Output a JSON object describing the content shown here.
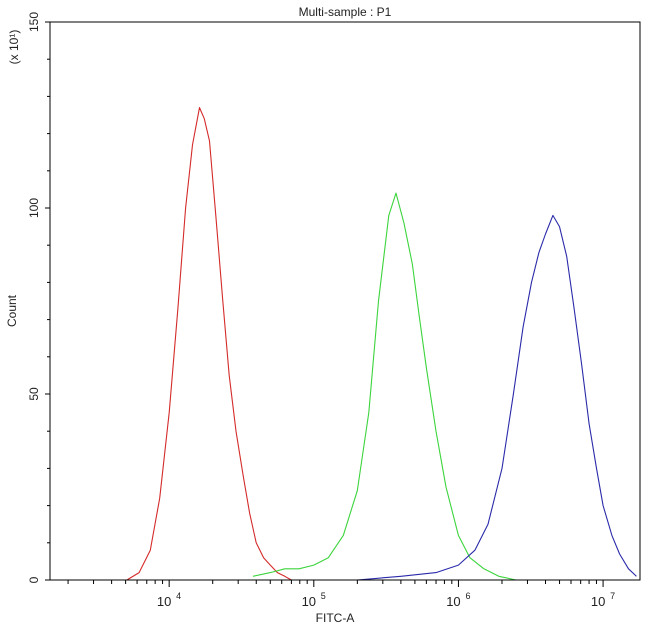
{
  "chart_data": {
    "type": "line",
    "title": "Multi-sample : P1",
    "xlabel": "FITC-A",
    "ylabel": "Count",
    "y_multiplier_label": "(x 10¹)",
    "xscale": "log",
    "xlim": [
      1500,
      18000000
    ],
    "ylim": [
      0,
      150
    ],
    "x_ticks": [
      {
        "value": 10000,
        "base": "10",
        "exp": "4"
      },
      {
        "value": 100000,
        "base": "10",
        "exp": "5"
      },
      {
        "value": 1000000,
        "base": "10",
        "exp": "6"
      },
      {
        "value": 10000000,
        "base": "10",
        "exp": "7"
      }
    ],
    "y_ticks": [
      0,
      50,
      100,
      150
    ],
    "grid": false,
    "series": [
      {
        "color": "#d42a2a",
        "x": [
          5100,
          6200,
          7400,
          8600,
          10000,
          11500,
          13000,
          14500,
          16200,
          17500,
          19000,
          21000,
          23500,
          26000,
          29000,
          32500,
          36000,
          40000,
          45000,
          50000,
          56000,
          63000,
          70000
        ],
        "y": [
          0,
          2,
          8,
          22,
          45,
          73,
          100,
          117,
          127,
          124,
          118,
          98,
          75,
          55,
          40,
          28,
          18,
          10,
          6,
          4,
          2,
          1,
          0
        ]
      },
      {
        "color": "#3cd43c",
        "x": [
          38000,
          50000,
          63000,
          79000,
          100000,
          126000,
          160000,
          200000,
          240000,
          280000,
          330000,
          370000,
          420000,
          480000,
          540000,
          600000,
          700000,
          820000,
          1000000,
          1200000,
          1500000,
          1900000,
          2500000
        ],
        "y": [
          1,
          2,
          3,
          3,
          4,
          6,
          12,
          24,
          45,
          75,
          98,
          104,
          96,
          85,
          70,
          57,
          40,
          25,
          12,
          6,
          3,
          1,
          0
        ]
      },
      {
        "color": "#2a2aaa",
        "x": [
          200000,
          400000,
          700000,
          1000000,
          1300000,
          1600000,
          2000000,
          2400000,
          2800000,
          3200000,
          3600000,
          4000000,
          4500000,
          5000000,
          5600000,
          6300000,
          7100000,
          8000000,
          9000000,
          10000000,
          11500000,
          13000000,
          15000000,
          17000000
        ],
        "y": [
          0,
          1,
          2,
          4,
          8,
          15,
          30,
          50,
          68,
          80,
          88,
          93,
          98,
          95,
          87,
          73,
          58,
          42,
          30,
          20,
          12,
          7,
          3,
          1
        ]
      }
    ]
  }
}
